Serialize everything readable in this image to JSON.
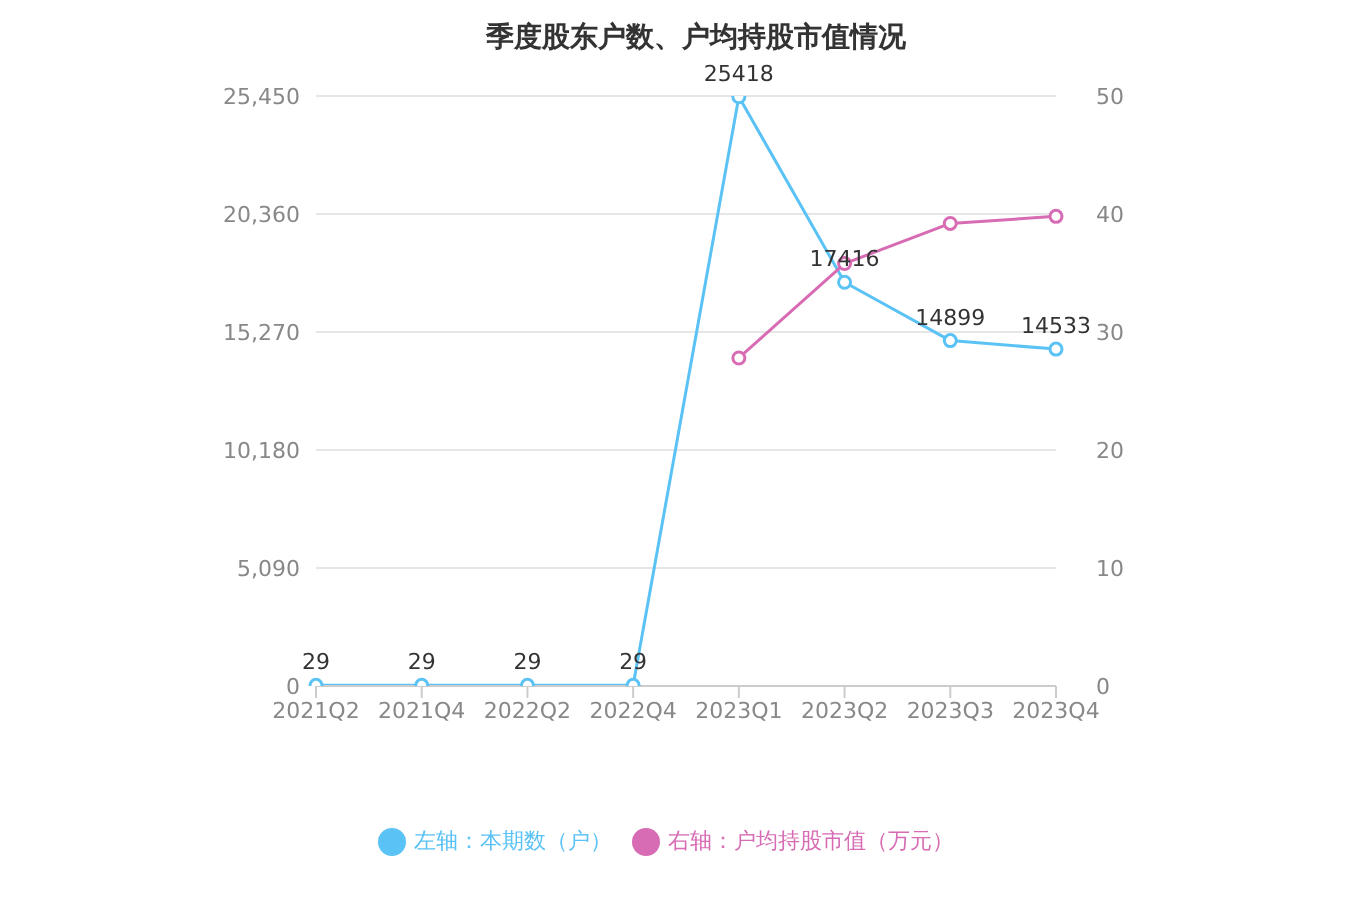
{
  "chart_data": {
    "type": "line",
    "title": "季度股东户数、户均持股市值情况",
    "categories": [
      "2021Q2",
      "2021Q4",
      "2022Q2",
      "2022Q4",
      "2023Q1",
      "2023Q2",
      "2023Q3",
      "2023Q4"
    ],
    "series": [
      {
        "name": "左轴：本期数（户）",
        "color": "#5bc2f5",
        "values": [
          29,
          29,
          29,
          29,
          25418,
          17416,
          14899,
          14533
        ],
        "value_labels": [
          "29",
          "29",
          "29",
          "29",
          "25418",
          "17416",
          "14899",
          "14533"
        ]
      },
      {
        "name": "右轴：户均持股市值（万元）",
        "color": "#d86cb4",
        "axis": "y2",
        "values": [
          null,
          null,
          null,
          null,
          27.8,
          35.8,
          39.2,
          39.8
        ]
      }
    ],
    "ylim": [
      0,
      25450
    ],
    "yticks": [
      0,
      {
        "value": 5090,
        "label": "5,090"
      },
      {
        "value": 10180,
        "label": "10,180"
      },
      {
        "value": 15270,
        "label": "15,270"
      },
      {
        "value": 20360,
        "label": "20,360"
      },
      {
        "value": 25450,
        "label": "25,450"
      }
    ],
    "y2lim": [
      0,
      50
    ],
    "y2ticks": [
      0,
      10,
      20,
      30,
      40,
      50
    ],
    "grid": "y",
    "legend": "bottom",
    "marker": "circle"
  }
}
